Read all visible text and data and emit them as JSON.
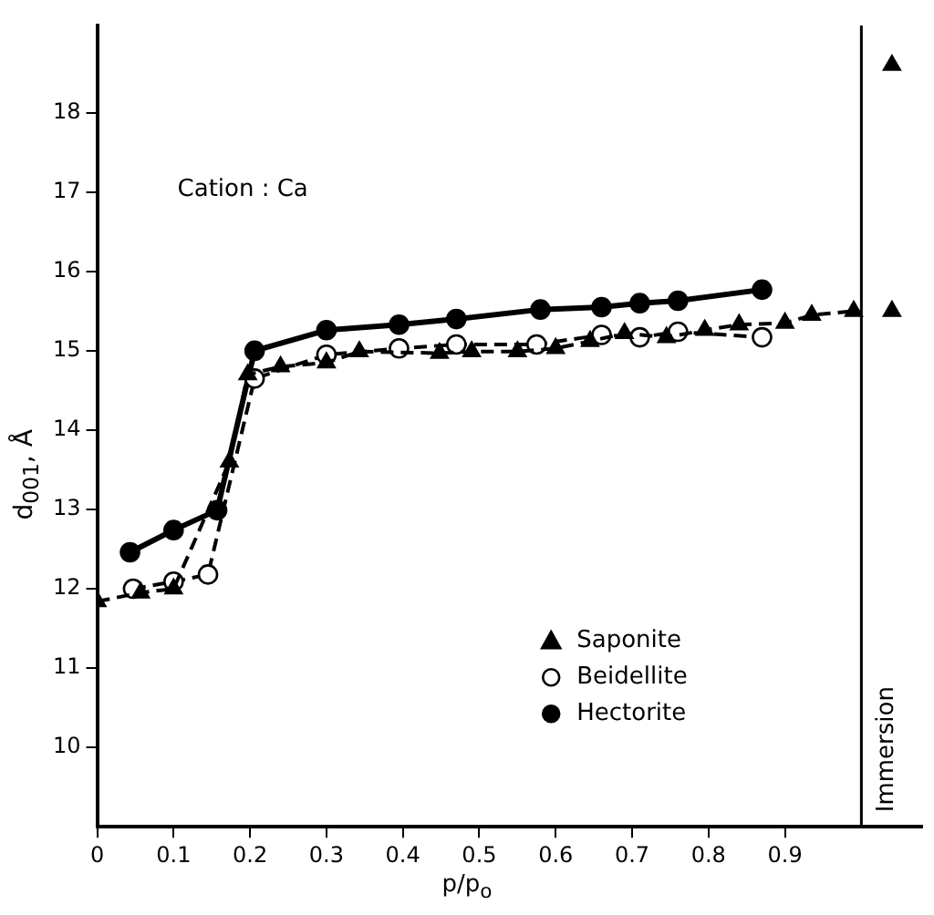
{
  "chart_data": {
    "type": "line",
    "xlabel": "p/p$_{o}$",
    "ylabel": "d$_{001}$,  Å",
    "xlim": [
      0,
      1.08
    ],
    "ylim": [
      9,
      19.1
    ],
    "xticks": [
      0,
      0.1,
      0.2,
      0.3,
      0.4,
      0.5,
      0.6,
      0.7,
      0.8,
      0.9
    ],
    "yticks": [
      10,
      11,
      12,
      13,
      14,
      15,
      16,
      17,
      18
    ],
    "grid": false,
    "legend": "bottom right",
    "annotations": [
      "Cation : Ca"
    ],
    "ref_lines": [
      {
        "axis": "x",
        "value": 1.0,
        "label": "Immersion",
        "color": "#000000",
        "line_style": "solid"
      }
    ],
    "series": [
      {
        "name": "Saponite",
        "color": "#000000",
        "marker": "triangle",
        "line_style": "dashed",
        "x": [
          0,
          0.057,
          0.1,
          0.173,
          0.197,
          0.24,
          0.3,
          0.343,
          0.448,
          0.49,
          0.55,
          0.6,
          0.645,
          0.69,
          0.745,
          0.795,
          0.84,
          0.9,
          0.935,
          0.99
        ],
        "values": [
          11.84,
          11.95,
          12.0,
          13.6,
          14.7,
          14.8,
          14.85,
          14.99,
          14.97,
          14.99,
          14.99,
          15.03,
          15.12,
          15.22,
          15.17,
          15.26,
          15.33,
          15.35,
          15.45,
          15.5
        ]
      },
      {
        "name": "Beidellite",
        "color": "#ffffff",
        "marker": "circle",
        "line_style": "dashed",
        "x": [
          0.047,
          0.1,
          0.145,
          0.206,
          0.3,
          0.395,
          0.47,
          0.575,
          0.66,
          0.71,
          0.76,
          0.87
        ],
        "values": [
          12.0,
          12.09,
          12.18,
          14.65,
          14.95,
          15.03,
          15.08,
          15.08,
          15.2,
          15.17,
          15.24,
          15.17
        ]
      },
      {
        "name": "Hectorite",
        "color": "#000000",
        "marker": "circle",
        "line_style": "solid",
        "x": [
          0.043,
          0.1,
          0.157,
          0.206,
          0.3,
          0.395,
          0.47,
          0.58,
          0.66,
          0.71,
          0.76,
          0.87
        ],
        "values": [
          12.46,
          12.74,
          12.99,
          15.0,
          15.26,
          15.33,
          15.4,
          15.52,
          15.55,
          15.6,
          15.63,
          15.77
        ]
      },
      {
        "type": "scatter",
        "color": "#000000",
        "marker": "triangle",
        "x": [
          1.04,
          1.04
        ],
        "values": [
          15.5,
          18.6
        ]
      }
    ]
  }
}
